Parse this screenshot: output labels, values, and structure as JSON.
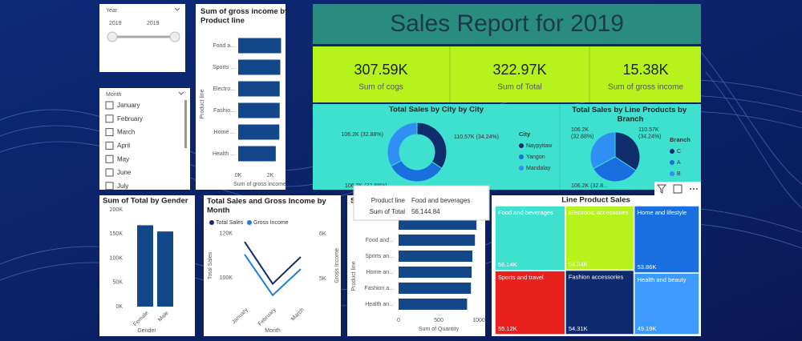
{
  "slicers": {
    "year": {
      "title": "Year",
      "from": "2019",
      "to": "2019"
    },
    "month": {
      "title": "Month",
      "items": [
        "January",
        "February",
        "March",
        "April",
        "May",
        "June",
        "July"
      ]
    }
  },
  "report_title": "Sales Report for 2019",
  "cards": [
    {
      "value": "307.59K",
      "label": "Sum of cogs"
    },
    {
      "value": "322.97K",
      "label": "Sum of Total"
    },
    {
      "value": "15.38K",
      "label": "Sum of gross income"
    }
  ],
  "tooltip": {
    "rows": [
      [
        "Product line",
        "Food and beverages"
      ],
      [
        "Sum of Total",
        "56,144.84"
      ]
    ]
  },
  "chart_data": [
    {
      "type": "bar",
      "orientation": "horizontal",
      "title": "Sum of gross income by Product line",
      "categories": [
        "Food a...",
        "Sports ...",
        "Electro...",
        "Fashio...",
        "Home ...",
        "Health ..."
      ],
      "values": [
        2673.56,
        2624.9,
        2587.5,
        2585.99,
        2564.85,
        2342.56
      ],
      "color": "#12478a",
      "xlim": [
        0,
        2800
      ],
      "xticks": [
        {
          "value": 0,
          "label": "0K"
        },
        {
          "value": 2000,
          "label": "2K"
        }
      ],
      "x_label": "Sum of gross income",
      "y_label": "Product line"
    },
    {
      "type": "donut",
      "title": "Total Sales by City by City",
      "legend_title": "City",
      "categories": [
        "Naypyitaw",
        "Yangon",
        "Mandalay"
      ],
      "values": [
        110570,
        106200,
        106200
      ],
      "value_labels": [
        "110.57K (34.24%)",
        "106.2K (32.88%)",
        "106.2K (32.88%)"
      ],
      "colors": [
        "#0f2d6b",
        "#1a6fe0",
        "#2f8ff5"
      ]
    },
    {
      "type": "pie",
      "title": "Total Sales by Line Products by Branch",
      "legend_title": "Branch",
      "categories": [
        "C",
        "A",
        "B"
      ],
      "values": [
        110570,
        106200,
        106200
      ],
      "value_labels": [
        "110.57K (34.24%)",
        "106.2K (32.8...",
        "106.2K (32.88%)"
      ],
      "colors": [
        "#0f2d6b",
        "#1a6fe0",
        "#2f8ff5"
      ]
    },
    {
      "type": "bar",
      "orientation": "vertical",
      "title": "Sum of Total by Gender",
      "categories": [
        "Female",
        "Male"
      ],
      "values": [
        167882.93,
        155083.82
      ],
      "color": "#12478a",
      "ylim": [
        0,
        200000
      ],
      "yticks": [
        {
          "value": 0,
          "label": "0K"
        },
        {
          "value": 50000,
          "label": "50K"
        },
        {
          "value": 100000,
          "label": "100K"
        },
        {
          "value": 150000,
          "label": "150K"
        },
        {
          "value": 200000,
          "label": "200K"
        }
      ],
      "x_label": "Gender"
    },
    {
      "type": "line",
      "title": "Total Sales and Gross Income by Month",
      "categories": [
        "January",
        "February",
        "March"
      ],
      "series": [
        {
          "name": "Total Sales",
          "color": "#0f2d6b",
          "values": [
            116291.87,
            97219.37,
            109455.51
          ]
        },
        {
          "name": "Gross Income",
          "color": "#1f7fd6",
          "axis": "y2",
          "values": [
            5537.71,
            4629.49,
            5212.17
          ]
        }
      ],
      "ylim": [
        88000,
        122500
      ],
      "yticks": [
        {
          "value": 100000,
          "label": "100K"
        },
        {
          "value": 120000,
          "label": "120K"
        }
      ],
      "y2lim": [
        4430,
        6125
      ],
      "y2ticks": [
        {
          "value": 5000,
          "label": "5K"
        },
        {
          "value": 6000,
          "label": "6K"
        }
      ],
      "x_label": "Month",
      "y_label": "Total Sales",
      "y2_label": "Gross Income"
    },
    {
      "type": "bar",
      "orientation": "horizontal",
      "title": "S",
      "categories": [
        null,
        "Food and...",
        "Sports an...",
        "Home an...",
        "Fashion a...",
        "Health an..."
      ],
      "values": [
        971,
        952,
        920,
        911,
        902,
        854
      ],
      "color": "#12478a",
      "xlim": [
        0,
        1000
      ],
      "xticks": [
        0,
        500,
        1000
      ],
      "x_label": "Sum of Quantity",
      "y_label": "Product line"
    },
    {
      "type": "treemap",
      "title": "Line Product Sales",
      "categories": [
        "Food and beverages",
        "Electronic accessories",
        "Home and lifestyle",
        "Sports and travel",
        "Fashion accessories",
        "Health and beauty"
      ],
      "values": [
        56140,
        54340,
        53860,
        55120,
        54310,
        49190
      ],
      "value_labels": [
        "56.14K",
        "54.34K",
        "53.86K",
        "55.12K",
        "54.31K",
        "49.19K"
      ],
      "colors": [
        "#3ee0cf",
        "#b6f21b",
        "#1a6fe0",
        "#e8201e",
        "#0e2a6e",
        "#3d9bff"
      ]
    }
  ]
}
